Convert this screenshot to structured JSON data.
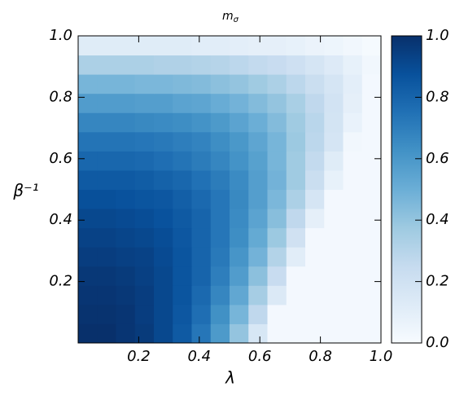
{
  "chart_data": {
    "type": "heatmap",
    "title": "m",
    "title_subscript": "σ",
    "xlabel": "λ",
    "ylabel": "β⁻¹",
    "colormap": "Blues",
    "xlim": [
      0,
      1
    ],
    "ylim": [
      0,
      1
    ],
    "clim": [
      0,
      1
    ],
    "xticks": [
      0.2,
      0.4,
      0.6,
      0.8,
      {
        "value": 1,
        "label": "1.0"
      }
    ],
    "yticks": [
      0.2,
      0.4,
      0.6,
      0.8,
      {
        "value": 1,
        "label": "1.0"
      }
    ],
    "cticks": [
      {
        "value": 0,
        "label": "0.0"
      },
      0.2,
      0.4,
      0.6,
      0.8,
      {
        "value": 1,
        "label": "1.0"
      }
    ],
    "z": [
      [
        1.0,
        1.0,
        0.98,
        0.96,
        0.91,
        0.84,
        0.73,
        0.59,
        0.4,
        0.16,
        0.02,
        0.02,
        0.02,
        0.02,
        0.02,
        0.02
      ],
      [
        0.99,
        0.99,
        0.98,
        0.95,
        0.91,
        0.85,
        0.76,
        0.63,
        0.47,
        0.27,
        0.02,
        0.02,
        0.02,
        0.02,
        0.02,
        0.02
      ],
      [
        0.98,
        0.98,
        0.97,
        0.95,
        0.91,
        0.86,
        0.78,
        0.67,
        0.53,
        0.35,
        0.14,
        0.02,
        0.02,
        0.02,
        0.02,
        0.02
      ],
      [
        0.97,
        0.97,
        0.96,
        0.94,
        0.91,
        0.86,
        0.8,
        0.7,
        0.58,
        0.42,
        0.24,
        0.02,
        0.02,
        0.02,
        0.02,
        0.02
      ],
      [
        0.95,
        0.95,
        0.94,
        0.93,
        0.9,
        0.86,
        0.8,
        0.72,
        0.61,
        0.48,
        0.31,
        0.11,
        0.02,
        0.02,
        0.02,
        0.02
      ],
      [
        0.93,
        0.93,
        0.92,
        0.91,
        0.89,
        0.85,
        0.8,
        0.73,
        0.64,
        0.52,
        0.38,
        0.2,
        0.02,
        0.02,
        0.02,
        0.02
      ],
      [
        0.91,
        0.91,
        0.9,
        0.89,
        0.87,
        0.84,
        0.8,
        0.73,
        0.65,
        0.55,
        0.43,
        0.27,
        0.09,
        0.02,
        0.02,
        0.02
      ],
      [
        0.88,
        0.88,
        0.87,
        0.86,
        0.85,
        0.82,
        0.78,
        0.73,
        0.66,
        0.57,
        0.46,
        0.33,
        0.17,
        0.02,
        0.02,
        0.02
      ],
      [
        0.84,
        0.84,
        0.84,
        0.83,
        0.81,
        0.79,
        0.75,
        0.71,
        0.65,
        0.57,
        0.48,
        0.37,
        0.23,
        0.08,
        0.02,
        0.02
      ],
      [
        0.79,
        0.79,
        0.79,
        0.78,
        0.76,
        0.74,
        0.71,
        0.67,
        0.62,
        0.56,
        0.47,
        0.37,
        0.26,
        0.12,
        0.02,
        0.02
      ],
      [
        0.74,
        0.74,
        0.74,
        0.73,
        0.72,
        0.7,
        0.68,
        0.64,
        0.6,
        0.54,
        0.47,
        0.38,
        0.28,
        0.17,
        0.03,
        0.02
      ],
      [
        0.67,
        0.67,
        0.67,
        0.66,
        0.65,
        0.64,
        0.62,
        0.59,
        0.55,
        0.5,
        0.44,
        0.37,
        0.29,
        0.18,
        0.07,
        0.02
      ],
      [
        0.58,
        0.58,
        0.58,
        0.57,
        0.57,
        0.55,
        0.54,
        0.51,
        0.48,
        0.44,
        0.4,
        0.34,
        0.27,
        0.19,
        0.09,
        0.02
      ],
      [
        0.47,
        0.47,
        0.47,
        0.46,
        0.46,
        0.45,
        0.44,
        0.42,
        0.4,
        0.37,
        0.33,
        0.28,
        0.23,
        0.17,
        0.1,
        0.02
      ],
      [
        0.33,
        0.33,
        0.33,
        0.33,
        0.32,
        0.32,
        0.31,
        0.3,
        0.28,
        0.26,
        0.24,
        0.21,
        0.17,
        0.13,
        0.08,
        0.03
      ],
      [
        0.12,
        0.12,
        0.12,
        0.12,
        0.12,
        0.12,
        0.11,
        0.11,
        0.1,
        0.09,
        0.09,
        0.08,
        0.06,
        0.05,
        0.03,
        0.01
      ]
    ]
  }
}
